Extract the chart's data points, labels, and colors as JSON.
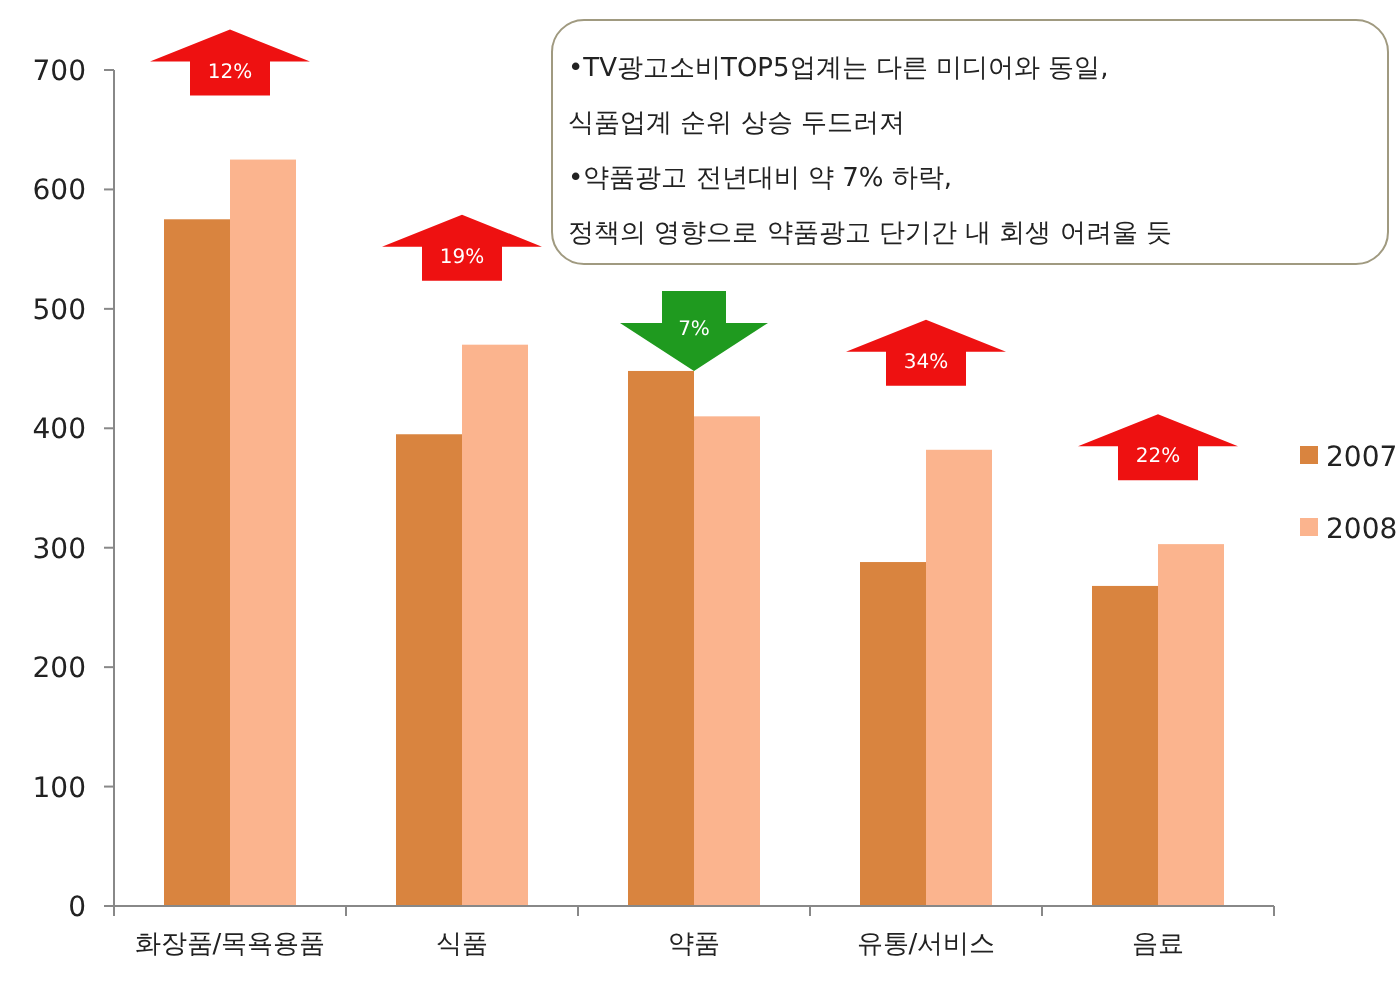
{
  "chart_data": {
    "type": "bar",
    "categories": [
      "화장품/목욕용품",
      "식품",
      "약품",
      "유통/서비스",
      "음료"
    ],
    "series": [
      {
        "name": "2007",
        "color": "#d9843f",
        "values": [
          575,
          395,
          448,
          288,
          268
        ]
      },
      {
        "name": "2008",
        "color": "#fbb48e",
        "values": [
          625,
          470,
          410,
          382,
          303
        ]
      }
    ],
    "ylim": [
      0,
      700
    ],
    "yticks": [
      0,
      100,
      200,
      300,
      400,
      500,
      600,
      700
    ],
    "grid": false,
    "legend": "right",
    "annotations": [
      "12%",
      "19%",
      "7%",
      "34%",
      "22%",
      "•TV광고소비TOP5업계는 다른 미디어와 동일,",
      "식품업계 순위 상승 두드러져",
      "•약품광고 전년대비 약 7% 하락,",
      "정책의 영향으로 약품광고 단기간 내 회생 어려울 듯"
    ]
  }
}
